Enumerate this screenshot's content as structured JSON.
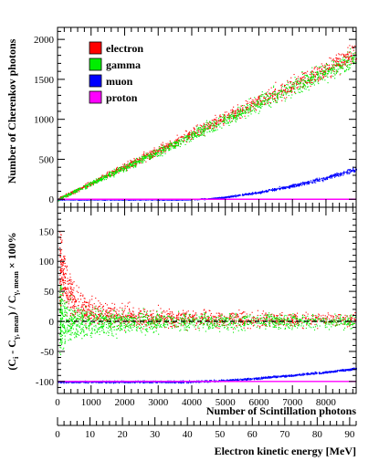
{
  "chart_data": [
    {
      "type": "scatter",
      "panel": "top",
      "title": "",
      "xlabel": "",
      "ylabel": "Number of Cherenkov photons",
      "xlim": [
        0,
        8900
      ],
      "ylim": [
        -100,
        2150
      ],
      "y_ticks": [
        0,
        500,
        1000,
        1500,
        2000
      ],
      "grid": false,
      "legend_placement": "top-left",
      "series": [
        {
          "name": "electron",
          "color": "#ff0000",
          "x": [
            0,
            1000,
            2000,
            3000,
            4000,
            5000,
            6000,
            7000,
            8000,
            8900
          ],
          "y": [
            0,
            205,
            410,
            615,
            820,
            1025,
            1230,
            1435,
            1640,
            1825
          ]
        },
        {
          "name": "gamma",
          "color": "#00ee00",
          "x": [
            0,
            1000,
            2000,
            3000,
            4000,
            5000,
            6000,
            7000,
            8000,
            8900
          ],
          "y": [
            0,
            200,
            400,
            600,
            800,
            1000,
            1200,
            1400,
            1600,
            1780
          ]
        },
        {
          "name": "muon",
          "color": "#0000ff",
          "x": [
            0,
            1000,
            2000,
            3000,
            3800,
            4500,
            5000,
            6000,
            7000,
            8000,
            8900
          ],
          "y": [
            0,
            0,
            0,
            0,
            0,
            10,
            30,
            90,
            170,
            270,
            380
          ]
        },
        {
          "name": "proton",
          "color": "#ff00ff",
          "x": [
            0,
            8900
          ],
          "y": [
            0,
            0
          ]
        }
      ]
    },
    {
      "type": "scatter",
      "panel": "bottom",
      "title": "",
      "xlabel": "Number of Scintillation photons",
      "ylabel": "(C",
      "ylabel_parts": {
        "a": "(C",
        "b": "i",
        "c": " - C",
        "d": "γ, mean",
        "e": ") / C",
        "f": "γ, mean",
        "g": " × 100%"
      },
      "xlim": [
        0,
        8900
      ],
      "ylim": [
        -120,
        190
      ],
      "x_ticks": [
        0,
        1000,
        2000,
        3000,
        4000,
        5000,
        6000,
        7000,
        8000
      ],
      "y_ticks": [
        -100,
        -50,
        0,
        50,
        100,
        150
      ],
      "reference_line": 0,
      "grid": false,
      "series": [
        {
          "name": "electron",
          "color": "#ff0000",
          "x": [
            100,
            300,
            500,
            1000,
            2000,
            4000,
            6000,
            8900
          ],
          "y": [
            90,
            50,
            30,
            15,
            8,
            5,
            4,
            3
          ]
        },
        {
          "name": "gamma",
          "color": "#00ee00",
          "x": [
            100,
            300,
            500,
            1000,
            2000,
            4000,
            6000,
            8900
          ],
          "y": [
            0,
            0,
            0,
            0,
            0,
            0,
            0,
            0
          ]
        },
        {
          "name": "muon",
          "color": "#0000ff",
          "x": [
            0,
            1000,
            2000,
            3000,
            3800,
            4500,
            5000,
            6000,
            7000,
            8000,
            8900
          ],
          "y": [
            -100,
            -100,
            -100,
            -100,
            -100,
            -99,
            -98,
            -94,
            -89,
            -84,
            -78
          ]
        },
        {
          "name": "proton",
          "color": "#ff00ff",
          "x": [
            0,
            8900
          ],
          "y": [
            -100,
            -100
          ]
        }
      ],
      "secondary_x_axis": {
        "label": "Electron kinetic energy [MeV]",
        "lim": [
          0,
          92
        ],
        "ticks": [
          0,
          10,
          20,
          30,
          40,
          50,
          60,
          70,
          80,
          90
        ]
      }
    }
  ]
}
